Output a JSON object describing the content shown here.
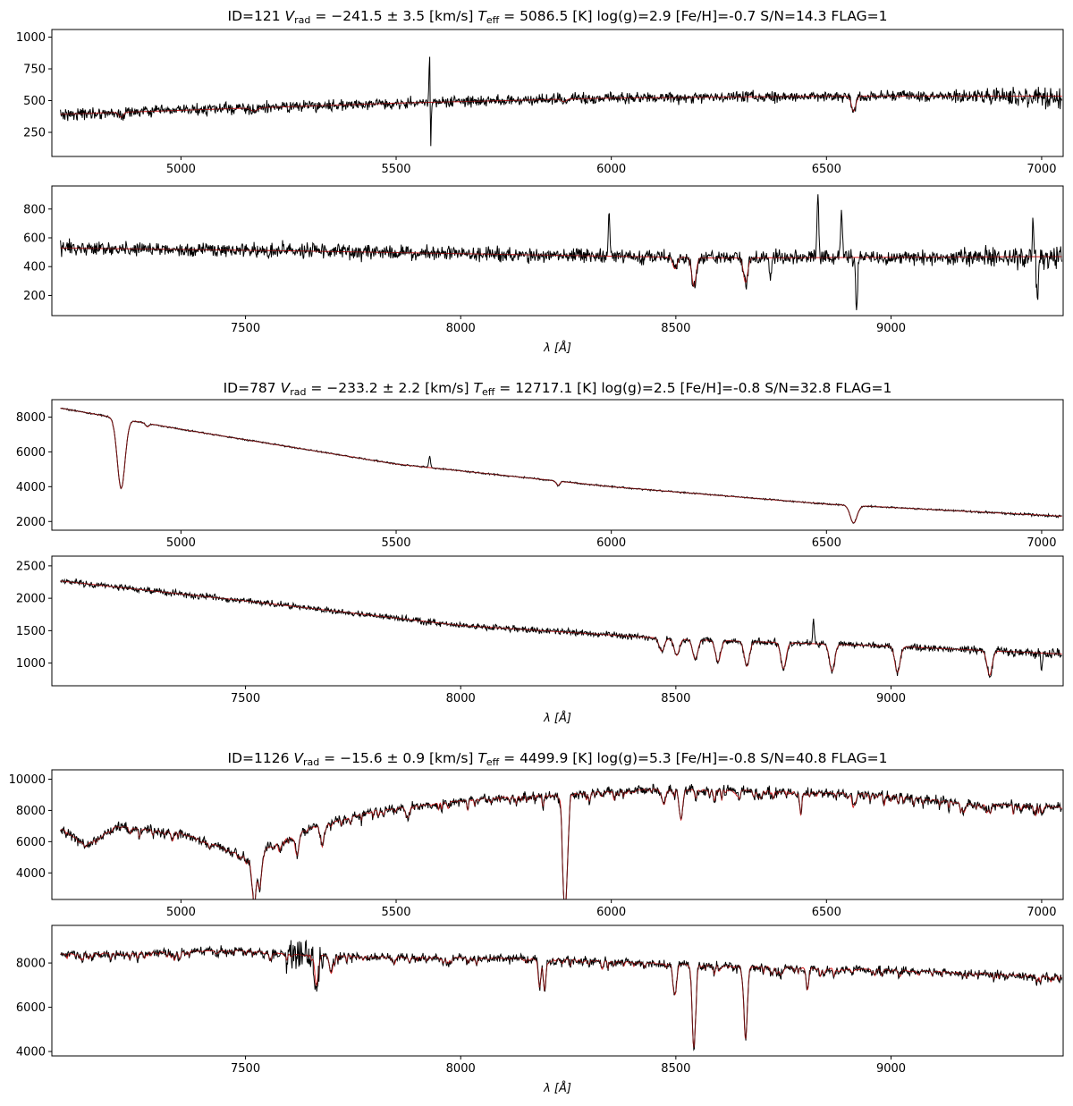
{
  "figure": {
    "xlabel": "λ [Å]",
    "colors": {
      "observed": "#000000",
      "model": "#d62728"
    }
  },
  "chart_data": [
    {
      "type": "line",
      "title": "ID=121  V_rad = −241.5 ± 3.5 [km/s]  T_eff = 5086.5 [K]  log(g)=2.9  [Fe/H]=-0.7  S/N=14.3  FLAG=1",
      "title_parts": {
        "id": "ID=121",
        "vrad_value": "= −241.5 ± 3.5 [km/s]",
        "teff_value": "= 5086.5 [K]",
        "rest": "log(g)=2.9  [Fe/H]=-0.7  S/N=14.3  FLAG=1"
      },
      "panels": [
        {
          "xlim": [
            4700,
            7050
          ],
          "ylim": [
            60,
            1060
          ],
          "xticks": [
            5000,
            5500,
            6000,
            6500,
            7000
          ],
          "yticks": [
            250,
            500,
            750,
            1000
          ],
          "xlabel": "",
          "continuum": [
            [
              4700,
              390
            ],
            [
              5500,
              480
            ],
            [
              6000,
              520
            ],
            [
              6500,
              535
            ],
            [
              7050,
              535
            ]
          ],
          "noise": 40,
          "lines": [
            [
              4861,
              40,
              5
            ],
            [
              5170,
              25,
              8
            ],
            [
              5890,
              20,
              5
            ],
            [
              6563,
              120,
              5
            ]
          ],
          "spikes": [
            [
              5578,
              460,
              1.2
            ],
            [
              5580,
              -430,
              1.2
            ],
            [
              6300,
              150,
              2
            ],
            [
              6300,
              -160,
              2
            ]
          ],
          "series": [
            {
              "name": "observed",
              "values": []
            },
            {
              "name": "model",
              "values": []
            }
          ]
        },
        {
          "xlim": [
            7050,
            9400
          ],
          "ylim": [
            60,
            960
          ],
          "xticks": [
            7500,
            8000,
            8500,
            9000
          ],
          "yticks": [
            200,
            400,
            600,
            800
          ],
          "xlabel": "λ [Å]",
          "continuum": [
            [
              7050,
              530
            ],
            [
              7600,
              510
            ],
            [
              8200,
              480
            ],
            [
              8600,
              460
            ],
            [
              9400,
              470
            ]
          ],
          "noise": 45,
          "lines": [
            [
              8498,
              80,
              5
            ],
            [
              8542,
              200,
              5
            ],
            [
              8662,
              170,
              5
            ]
          ],
          "spikes": [
            [
              8345,
              300,
              2
            ],
            [
              8830,
              420,
              2
            ],
            [
              8885,
              350,
              2
            ],
            [
              8920,
              -380,
              2
            ],
            [
              9330,
              200,
              2
            ],
            [
              9340,
              -330,
              2
            ],
            [
              8720,
              -150,
              2
            ]
          ],
          "series": [
            {
              "name": "observed",
              "values": []
            },
            {
              "name": "model",
              "values": []
            }
          ]
        }
      ]
    },
    {
      "type": "line",
      "title": "ID=787  V_rad = −233.2 ± 2.2 [km/s]  T_eff = 12717.1 [K]  log(g)=2.5  [Fe/H]=-0.8  S/N=32.8  FLAG=1",
      "title_parts": {
        "id": "ID=787",
        "vrad_value": "= −233.2 ± 2.2 [km/s]",
        "teff_value": "= 12717.1 [K]",
        "rest": "log(g)=2.5  [Fe/H]=-0.8  S/N=32.8  FLAG=1"
      },
      "panels": [
        {
          "xlim": [
            4700,
            7050
          ],
          "ylim": [
            1500,
            9000
          ],
          "xticks": [
            5000,
            5500,
            6000,
            6500,
            7000
          ],
          "yticks": [
            2000,
            4000,
            6000,
            8000
          ],
          "xlabel": "",
          "continuum": [
            [
              4700,
              8600
            ],
            [
              5000,
              7300
            ],
            [
              5500,
              5300
            ],
            [
              6000,
              4000
            ],
            [
              6500,
              3000
            ],
            [
              7050,
              2300
            ]
          ],
          "noise": 40,
          "lines": [
            [
              4861,
              4000,
              9
            ],
            [
              6563,
              1000,
              8
            ],
            [
              5876,
              250,
              4
            ],
            [
              4922,
              200,
              4
            ]
          ],
          "spikes": [
            [
              5578,
              650,
              2
            ]
          ],
          "series": [
            {
              "name": "observed",
              "values": []
            },
            {
              "name": "model",
              "values": []
            }
          ]
        },
        {
          "xlim": [
            7050,
            9400
          ],
          "ylim": [
            650,
            2650
          ],
          "xticks": [
            7500,
            8000,
            8500,
            9000
          ],
          "yticks": [
            1000,
            1500,
            2000,
            2500
          ],
          "xlabel": "λ [Å]",
          "continuum": [
            [
              7050,
              2280
            ],
            [
              7500,
              1960
            ],
            [
              8000,
              1580
            ],
            [
              8500,
              1370
            ],
            [
              9000,
              1260
            ],
            [
              9400,
              1140
            ]
          ],
          "noise": 45,
          "lines": [
            [
              8467,
              200,
              6
            ],
            [
              8502,
              250,
              6
            ],
            [
              8545,
              300,
              6
            ],
            [
              8598,
              330,
              6
            ],
            [
              8665,
              380,
              6
            ],
            [
              8750,
              400,
              6
            ],
            [
              8863,
              420,
              6
            ],
            [
              9015,
              400,
              6
            ],
            [
              9229,
              380,
              6
            ]
          ],
          "spikes": [
            [
              8820,
              350,
              2
            ],
            [
              9350,
              -250,
              2
            ]
          ],
          "series": [
            {
              "name": "observed",
              "values": []
            },
            {
              "name": "model",
              "values": []
            }
          ]
        }
      ]
    },
    {
      "type": "line",
      "title": "ID=1126  V_rad = −15.6 ± 0.9 [km/s]  T_eff = 4499.9 [K]  log(g)=5.3  [Fe/H]=-0.8  S/N=40.8  FLAG=1",
      "title_parts": {
        "id": "ID=1126",
        "vrad_value": "= −15.6 ± 0.9 [km/s]",
        "teff_value": "= 4499.9 [K]",
        "rest": "log(g)=5.3  [Fe/H]=-0.8  S/N=40.8  FLAG=1"
      },
      "panels": [
        {
          "xlim": [
            4700,
            7050
          ],
          "ylim": [
            2300,
            10600
          ],
          "xticks": [
            5000,
            5500,
            6000,
            6500,
            7000
          ],
          "yticks": [
            4000,
            6000,
            8000,
            10000
          ],
          "xlabel": "",
          "continuum": [
            [
              4720,
              6900
            ],
            [
              4780,
              5800
            ],
            [
              4850,
              7000
            ],
            [
              5000,
              6600
            ],
            [
              5100,
              5600
            ],
            [
              5160,
              4900
            ],
            [
              5200,
              5600
            ],
            [
              5300,
              6900
            ],
            [
              5450,
              8000
            ],
            [
              5700,
              8800
            ],
            [
              5900,
              9100
            ],
            [
              6100,
              9400
            ],
            [
              6300,
              9300
            ],
            [
              6600,
              9100
            ],
            [
              6850,
              8400
            ],
            [
              7050,
              8300
            ]
          ],
          "noise": 260,
          "absorb": 0.11,
          "lines": [
            [
              5167,
              1500,
              4
            ],
            [
              5172,
              2000,
              4
            ],
            [
              5183,
              2200,
              4
            ],
            [
              5270,
              1400,
              4
            ],
            [
              5328,
              1200,
              4
            ],
            [
              5890,
              5000,
              4
            ],
            [
              5896,
              4300,
              4
            ],
            [
              6162,
              1600,
              4
            ],
            [
              6122,
              1000,
              4
            ],
            [
              6440,
              900,
              3
            ],
            [
              6563,
              700,
              4
            ]
          ],
          "spikes": [],
          "series": [
            {
              "name": "observed",
              "values": []
            },
            {
              "name": "model",
              "values": []
            }
          ]
        },
        {
          "xlim": [
            7050,
            9400
          ],
          "ylim": [
            3800,
            9700
          ],
          "xticks": [
            7500,
            8000,
            8500,
            9000
          ],
          "yticks": [
            4000,
            6000,
            8000
          ],
          "xlabel": "λ [Å]",
          "continuum": [
            [
              7050,
              8400
            ],
            [
              7300,
              8500
            ],
            [
              7500,
              8600
            ],
            [
              7600,
              8400
            ],
            [
              7800,
              8300
            ],
            [
              8200,
              8200
            ],
            [
              8600,
              7900
            ],
            [
              9000,
              7700
            ],
            [
              9400,
              7400
            ]
          ],
          "noise": 170,
          "absorb": 0.06,
          "lines": [
            [
              8498,
              1400,
              4
            ],
            [
              8542,
              3700,
              4
            ],
            [
              8662,
              3300,
              4
            ],
            [
              8183,
              1200,
              3
            ],
            [
              8195,
              1400,
              3
            ],
            [
              7665,
              1300,
              4
            ],
            [
              7699,
              800,
              4
            ],
            [
              8806,
              1000,
              3
            ]
          ],
          "spikes": [],
          "bands": [
            [
              7594,
              7680,
              650
            ]
          ],
          "series": [
            {
              "name": "observed",
              "values": []
            },
            {
              "name": "model",
              "values": []
            }
          ]
        }
      ]
    }
  ]
}
